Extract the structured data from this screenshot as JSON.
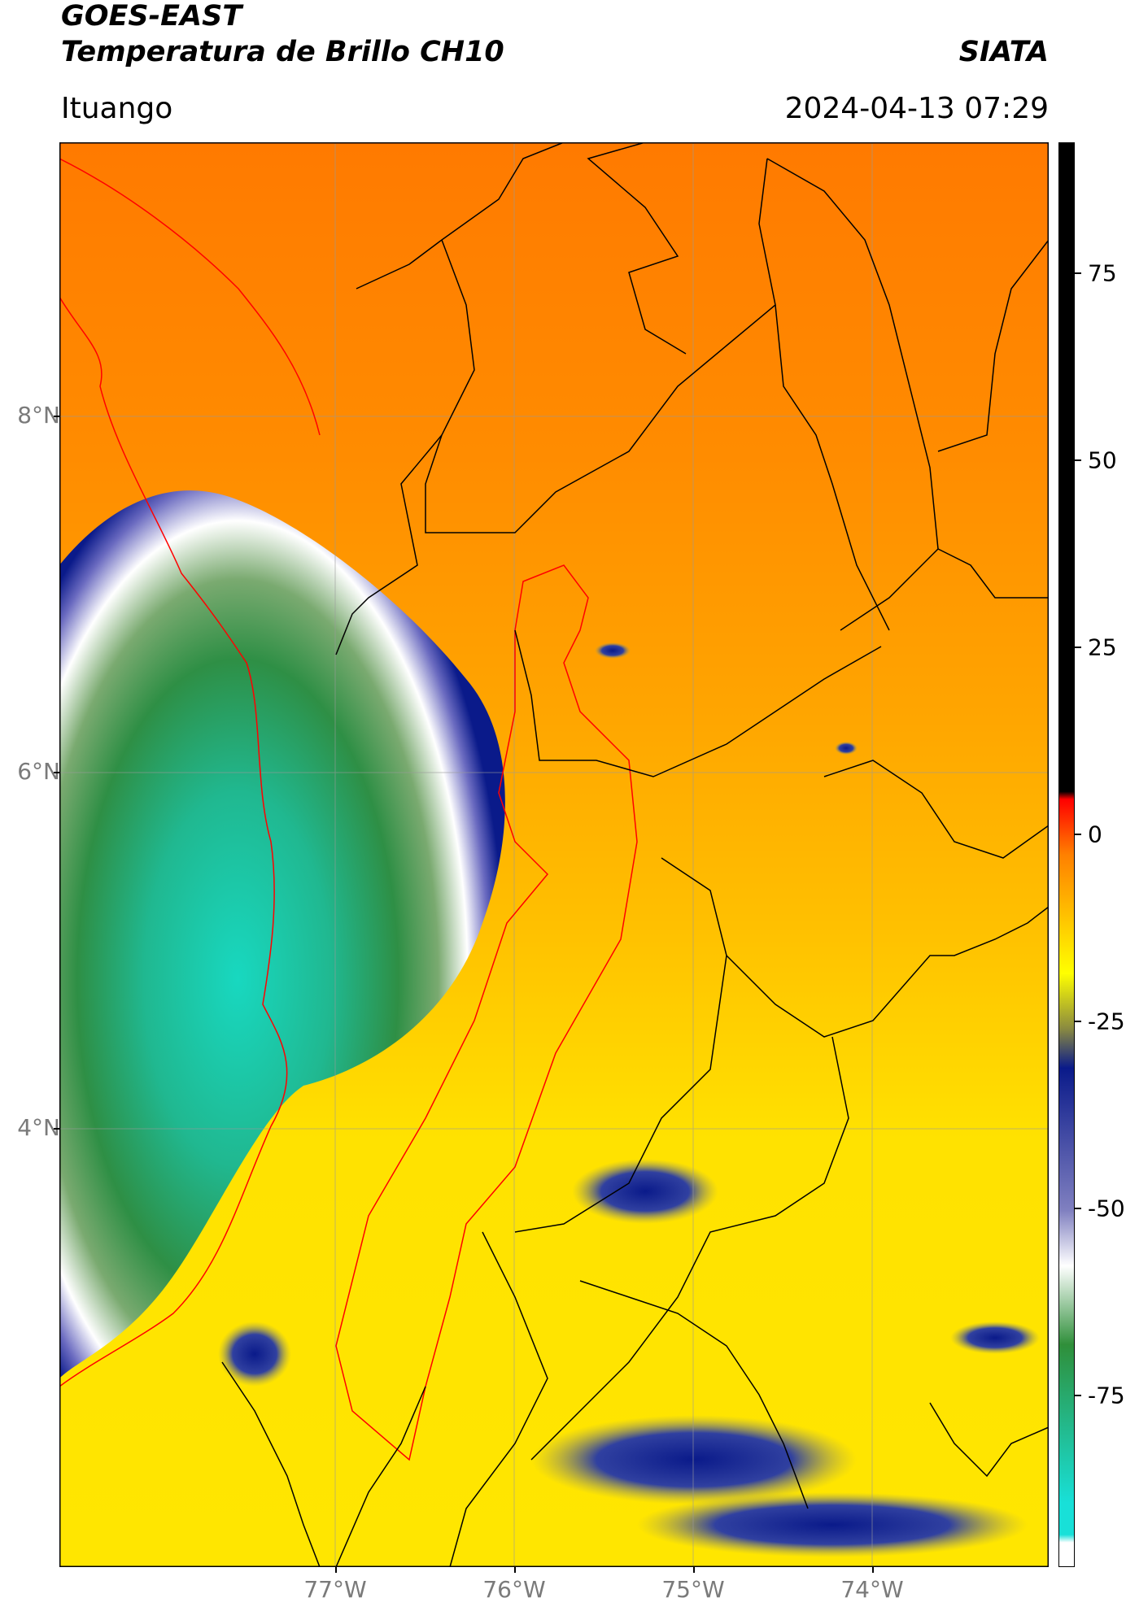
{
  "header": {
    "satellite": "GOES-EAST",
    "product": "Temperatura de Brillo CH10",
    "brand": "SIATA",
    "region": "Ituango",
    "timestamp": "2024-04-13 07:29"
  },
  "map": {
    "lat_labels": [
      "8°N",
      "6°N",
      "4°N"
    ],
    "lon_labels": [
      "77°W",
      "76°W",
      "75°W",
      "74°W"
    ]
  },
  "colorbar": {
    "tick_labels": [
      "75",
      "50",
      "25",
      "0",
      "-25",
      "-50",
      "-75"
    ],
    "range": [
      -90,
      90
    ],
    "colors": {
      "cyan": "#18e0d8",
      "green": "#2f8f3a",
      "white": "#ffffff",
      "navy": "#0a1a8a",
      "yellow": "#ffff00",
      "orange": "#ff8000",
      "red": "#ff0000",
      "black": "#000000"
    }
  }
}
